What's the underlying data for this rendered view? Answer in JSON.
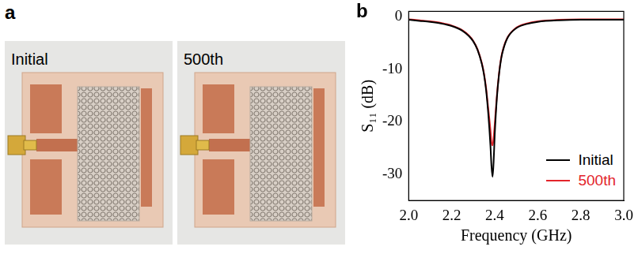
{
  "panel_a": {
    "label": "a",
    "photos": [
      {
        "label": "Initial"
      },
      {
        "label": "500th"
      }
    ]
  },
  "chart_data": {
    "panel_label": "b",
    "type": "line",
    "x_label": "Frequency (GHz)",
    "y_label": "S₁₁ (dB)",
    "x": [
      2.0,
      2.05,
      2.1,
      2.15,
      2.2,
      2.25,
      2.28,
      2.3,
      2.32,
      2.34,
      2.35,
      2.36,
      2.37,
      2.38,
      2.385,
      2.39,
      2.395,
      2.4,
      2.41,
      2.42,
      2.43,
      2.44,
      2.46,
      2.5,
      2.55,
      2.6,
      2.7,
      2.8,
      2.9,
      3.0
    ],
    "series": [
      {
        "name": "Initial",
        "color": "#000000",
        "values": [
          -0.6,
          -0.8,
          -1.0,
          -1.3,
          -1.8,
          -2.7,
          -3.7,
          -4.7,
          -6.3,
          -9.0,
          -11.0,
          -14.0,
          -18.5,
          -24.5,
          -28.5,
          -30.5,
          -27.5,
          -22.5,
          -15.5,
          -11.0,
          -8.0,
          -6.2,
          -4.0,
          -2.2,
          -1.4,
          -1.0,
          -0.7,
          -0.6,
          -0.6,
          -0.6
        ]
      },
      {
        "name": "500th",
        "color": "#e3242b",
        "values": [
          -0.5,
          -0.7,
          -0.9,
          -1.2,
          -1.7,
          -2.6,
          -3.6,
          -4.6,
          -6.2,
          -8.8,
          -10.8,
          -13.6,
          -17.5,
          -21.5,
          -24.0,
          -24.5,
          -23.0,
          -20.5,
          -15.0,
          -10.8,
          -7.8,
          -6.0,
          -3.9,
          -2.1,
          -1.3,
          -0.9,
          -0.6,
          -0.5,
          -0.5,
          -0.5
        ]
      }
    ],
    "xlim": [
      2.0,
      3.0
    ],
    "xticks": [
      {
        "value": 2.0,
        "label": "2.0"
      },
      {
        "value": 2.2,
        "label": "2.2"
      },
      {
        "value": 2.4,
        "label": "2.4"
      },
      {
        "value": 2.6,
        "label": "2.6"
      },
      {
        "value": 2.8,
        "label": "2.8"
      },
      {
        "value": 3.0,
        "label": "3.0"
      }
    ],
    "ylim": [
      -35,
      1
    ],
    "yticks": [
      -30,
      -20,
      -10,
      0
    ],
    "grid": false,
    "legend": "lower right"
  }
}
